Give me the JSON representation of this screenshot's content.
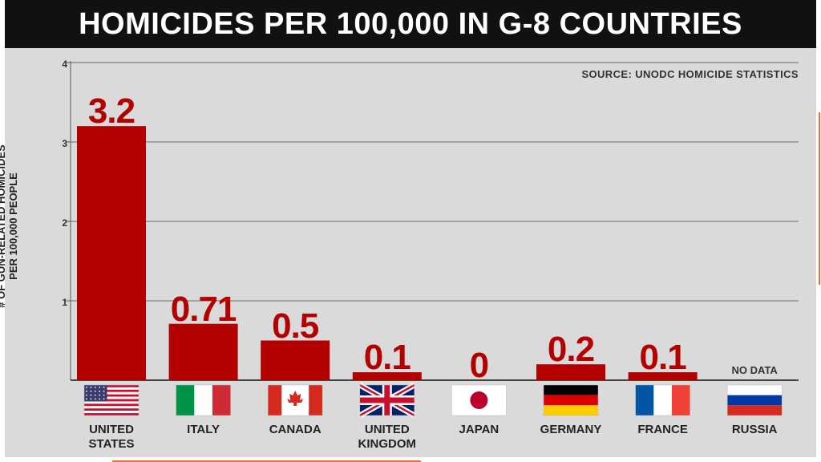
{
  "chart_data": {
    "type": "bar",
    "title": "HOMICIDES PER 100,000 IN G-8 COUNTRIES",
    "source": "SOURCE: UNODC HOMICIDE STATISTICS",
    "ylabel_lines": [
      "# OF GUN-RELATED HOMICIDES",
      "PER 100,000 PEOPLE"
    ],
    "xlabel": "",
    "ylim": [
      0,
      4
    ],
    "yticks": [
      1,
      2,
      3,
      4
    ],
    "grid": true,
    "bar_color": "#b30000",
    "categories": [
      {
        "lines": [
          "UNITED",
          "STATES"
        ],
        "value": 3.2,
        "label": "3.2",
        "flag": "usa-flag"
      },
      {
        "lines": [
          "ITALY"
        ],
        "value": 0.71,
        "label": "0.71",
        "flag": "italy-flag"
      },
      {
        "lines": [
          "CANADA"
        ],
        "value": 0.5,
        "label": "0.5",
        "flag": "canada-flag"
      },
      {
        "lines": [
          "UNITED",
          "KINGDOM"
        ],
        "value": 0.1,
        "label": "0.1",
        "flag": "uk-flag"
      },
      {
        "lines": [
          "JAPAN"
        ],
        "value": 0,
        "label": "0",
        "flag": "japan-flag"
      },
      {
        "lines": [
          "GERMANY"
        ],
        "value": 0.2,
        "label": "0.2",
        "flag": "germany-flag"
      },
      {
        "lines": [
          "FRANCE"
        ],
        "value": 0.1,
        "label": "0.1",
        "flag": "france-flag"
      },
      {
        "lines": [
          "RUSSIA"
        ],
        "value": null,
        "label": "NO DATA",
        "flag": "russia-flag"
      }
    ]
  }
}
